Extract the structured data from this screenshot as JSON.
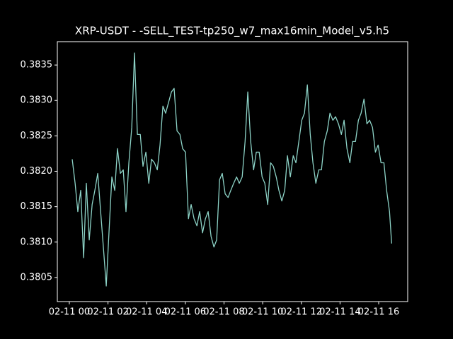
{
  "chart_data": {
    "type": "line",
    "title": "XRP-USDT - -SELL_TEST-tp250_w7_max16min_Model_v5.h5",
    "x": [
      0.15,
      0.3,
      0.44,
      0.59,
      0.74,
      0.88,
      1.03,
      1.18,
      1.32,
      1.47,
      1.62,
      1.76,
      1.91,
      2.05,
      2.2,
      2.35,
      2.49,
      2.64,
      2.79,
      2.93,
      3.08,
      3.23,
      3.37,
      3.52,
      3.67,
      3.81,
      3.96,
      4.11,
      4.25,
      4.4,
      4.55,
      4.69,
      4.84,
      4.98,
      5.13,
      5.28,
      5.42,
      5.57,
      5.72,
      5.86,
      6.01,
      6.16,
      6.3,
      6.45,
      6.6,
      6.74,
      6.89,
      7.04,
      7.18,
      7.33,
      7.48,
      7.62,
      7.77,
      7.91,
      8.06,
      8.21,
      8.35,
      8.5,
      8.65,
      8.79,
      8.94,
      9.09,
      9.23,
      9.38,
      9.53,
      9.67,
      9.82,
      9.97,
      10.11,
      10.26,
      10.41,
      10.55,
      10.7,
      10.84,
      10.99,
      11.14,
      11.28,
      11.43,
      11.58,
      11.72,
      11.87,
      12.02,
      12.16,
      12.31,
      12.46,
      12.6,
      12.75,
      12.9,
      13.04,
      13.19,
      13.34,
      13.48,
      13.63,
      13.77,
      13.92,
      14.07,
      14.21,
      14.36,
      14.51,
      14.65,
      14.8,
      14.95,
      15.09,
      15.24,
      15.39,
      15.53,
      15.68,
      15.83,
      15.97,
      16.12,
      16.27,
      16.41,
      16.56,
      16.67
    ],
    "series": [
      {
        "color": "#8dd3c7",
        "values": [
          0.38217,
          0.38183,
          0.38143,
          0.38173,
          0.38078,
          0.38183,
          0.38103,
          0.38153,
          0.38173,
          0.38197,
          0.38143,
          0.38093,
          0.38038,
          0.38113,
          0.38192,
          0.38173,
          0.38232,
          0.38197,
          0.38202,
          0.38143,
          0.38212,
          0.38262,
          0.38367,
          0.38252,
          0.38252,
          0.38207,
          0.38227,
          0.38183,
          0.38217,
          0.38212,
          0.38202,
          0.38237,
          0.38292,
          0.38282,
          0.38297,
          0.38312,
          0.38317,
          0.38257,
          0.38252,
          0.38232,
          0.38227,
          0.38133,
          0.38153,
          0.38133,
          0.38123,
          0.38143,
          0.38113,
          0.38133,
          0.38143,
          0.38108,
          0.38093,
          0.38103,
          0.38188,
          0.38197,
          0.38168,
          0.38163,
          0.38173,
          0.38183,
          0.38192,
          0.38183,
          0.38192,
          0.38242,
          0.38312,
          0.38242,
          0.38202,
          0.38227,
          0.38227,
          0.38192,
          0.38183,
          0.38153,
          0.38212,
          0.38207,
          0.38192,
          0.38173,
          0.38158,
          0.38173,
          0.38222,
          0.38192,
          0.38222,
          0.38212,
          0.38242,
          0.38272,
          0.38282,
          0.38322,
          0.38252,
          0.38212,
          0.38183,
          0.38202,
          0.38202,
          0.38242,
          0.38257,
          0.38282,
          0.38272,
          0.38277,
          0.38267,
          0.38252,
          0.38272,
          0.38232,
          0.38212,
          0.38242,
          0.38242,
          0.38272,
          0.38282,
          0.38302,
          0.38267,
          0.38272,
          0.38262,
          0.38227,
          0.38237,
          0.38212,
          0.38212,
          0.38173,
          0.38143,
          0.38098
        ]
      }
    ],
    "xlim": [
      -0.62,
      17.5
    ],
    "xticks": [
      {
        "value": 0,
        "label": "02-11 00"
      },
      {
        "value": 2,
        "label": "02-11 02"
      },
      {
        "value": 4,
        "label": "02-11 04"
      },
      {
        "value": 6,
        "label": "02-11 06"
      },
      {
        "value": 8,
        "label": "02-11 08"
      },
      {
        "value": 10,
        "label": "02-11 10"
      },
      {
        "value": 12,
        "label": "02-11 12"
      },
      {
        "value": 14,
        "label": "02-11 14"
      },
      {
        "value": 16,
        "label": "02-11 16"
      }
    ],
    "ylim": [
      0.38016,
      0.38383
    ],
    "yticks": [
      0.3805,
      {
        "value": 0.381,
        "label": "0.3810"
      },
      0.3815,
      {
        "value": 0.382,
        "label": "0.3820"
      },
      0.3825,
      {
        "value": 0.383,
        "label": "0.3830"
      },
      0.3835
    ]
  }
}
